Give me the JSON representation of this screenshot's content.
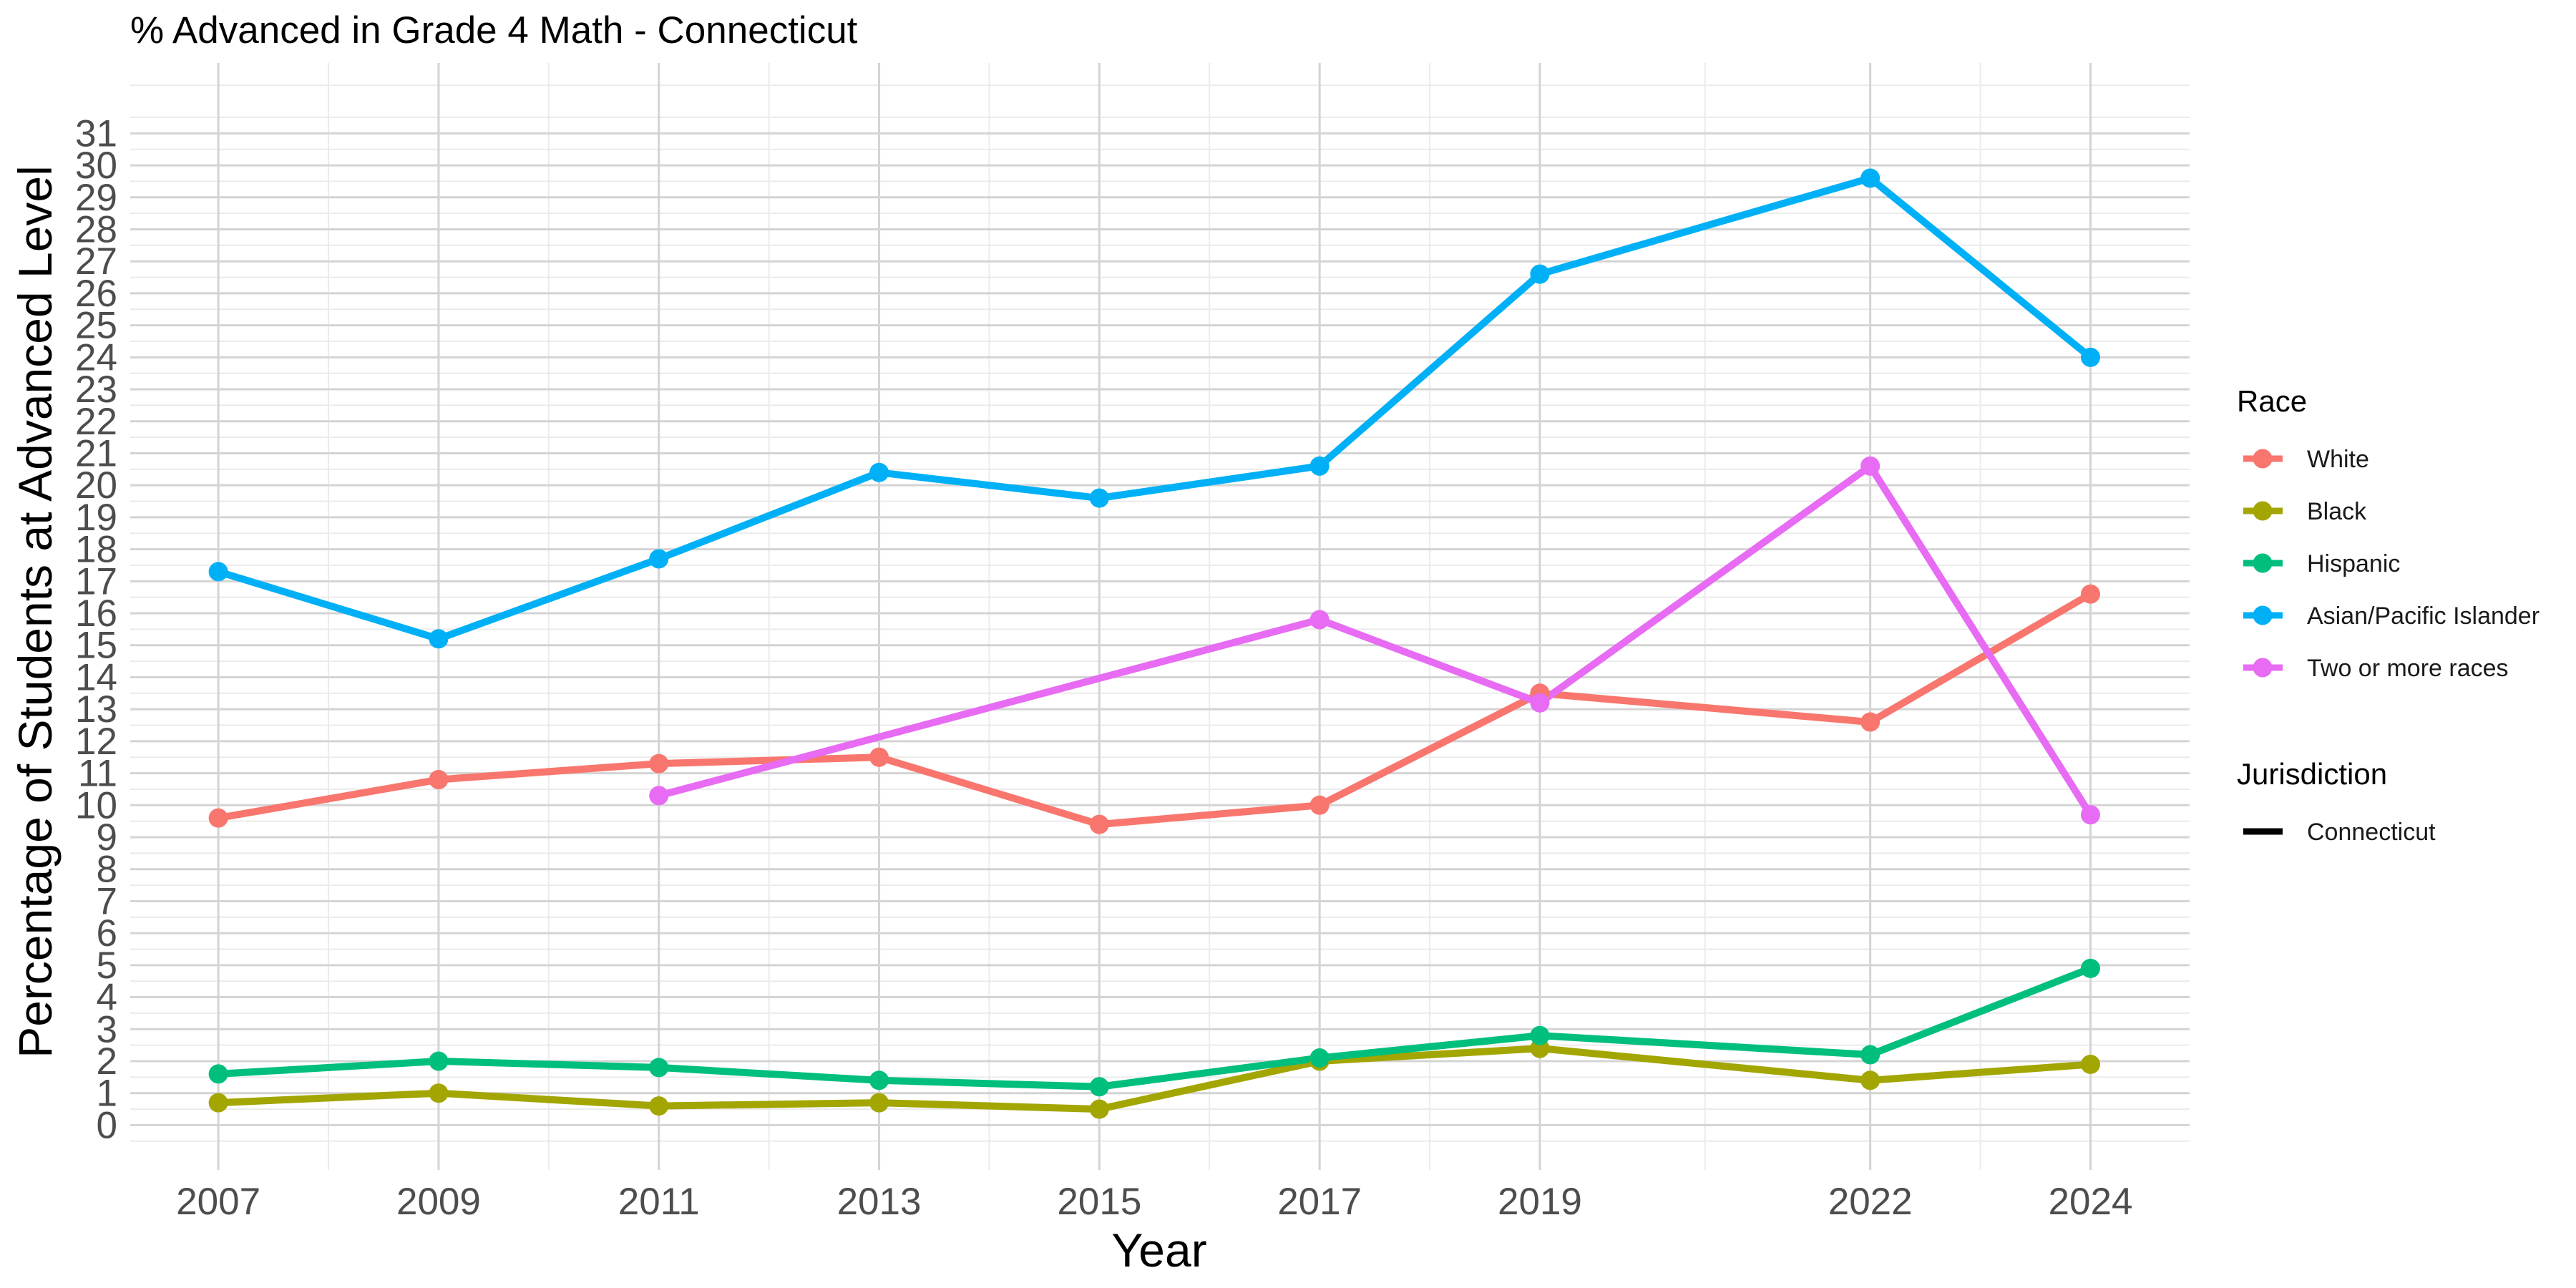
{
  "chart_data": {
    "type": "line",
    "title": "% Advanced in Grade 4 Math - Connecticut",
    "xlabel": "Year",
    "ylabel": "Percentage of Students at Advanced Level",
    "x": [
      2007,
      2009,
      2011,
      2013,
      2015,
      2017,
      2019,
      2022,
      2024
    ],
    "x_tick_labels": [
      "2007",
      "2009",
      "2011",
      "2013",
      "2015",
      "2017",
      "2019",
      "2022",
      "2024"
    ],
    "y_ticks": [
      "0",
      "1",
      "2",
      "3",
      "4",
      "5",
      "6",
      "7",
      "8",
      "9",
      "10",
      "11",
      "12",
      "13",
      "14",
      "15",
      "16",
      "17",
      "18",
      "19",
      "20",
      "21",
      "22",
      "23",
      "24",
      "25",
      "26",
      "27",
      "28",
      "29",
      "30",
      "31"
    ],
    "xlim": [
      2006.2,
      2024.9
    ],
    "ylim": [
      -1.4,
      33.2
    ],
    "grid": true,
    "legend_position": "right",
    "legend": {
      "race_title": "Race",
      "jurisdiction_title": "Jurisdiction",
      "jurisdiction_label": "Connecticut"
    },
    "series": [
      {
        "name": "White",
        "color": "#F8766D",
        "values": [
          9.6,
          10.8,
          11.3,
          11.5,
          9.4,
          10.0,
          13.5,
          12.6,
          16.6
        ]
      },
      {
        "name": "Black",
        "color": "#A3A500",
        "values": [
          0.7,
          1.0,
          0.6,
          0.7,
          0.5,
          2.0,
          2.4,
          1.4,
          1.9
        ]
      },
      {
        "name": "Hispanic",
        "color": "#00BF7D",
        "values": [
          1.6,
          2.0,
          1.8,
          1.4,
          1.2,
          2.1,
          2.8,
          2.2,
          4.9
        ]
      },
      {
        "name": "Asian/Pacific Islander",
        "color": "#00B0F6",
        "values": [
          17.3,
          15.2,
          17.7,
          20.4,
          19.6,
          20.6,
          26.6,
          29.6,
          24.0
        ]
      },
      {
        "name": "Two or more races",
        "color": "#E76BF3",
        "values": [
          null,
          null,
          10.3,
          null,
          null,
          15.8,
          13.2,
          20.6,
          9.7
        ]
      }
    ]
  }
}
